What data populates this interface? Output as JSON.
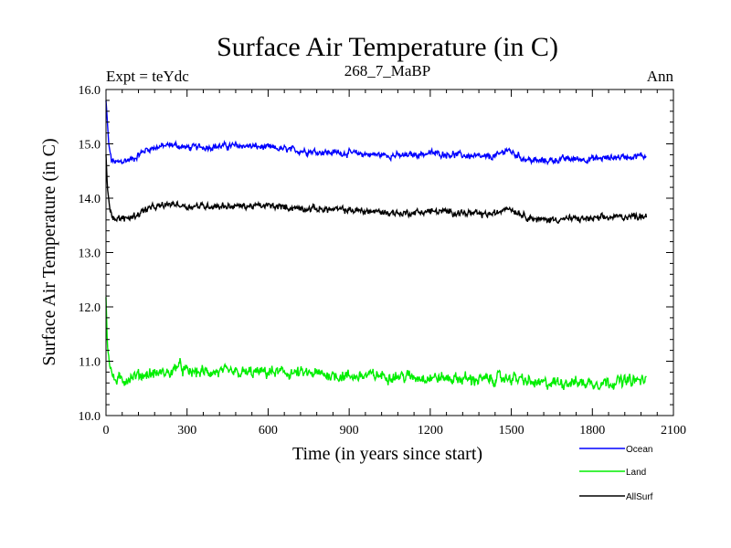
{
  "chart_data": {
    "type": "line",
    "title": "Surface Air Temperature (in C)",
    "subtitle": "268_7_MaBP",
    "experiment": "Expt = teYdc",
    "season": "Ann",
    "xlabel": "Time (in years since start)",
    "ylabel": "Surface Air Temperature (in C)",
    "xlim": [
      0,
      2100
    ],
    "ylim": [
      10.0,
      16.0
    ],
    "xticks": [
      0,
      300,
      600,
      900,
      1200,
      1500,
      1800,
      2100
    ],
    "xtick_labels": [
      "0",
      "300",
      "600",
      "900",
      "1200",
      "1500",
      "1800",
      "2100"
    ],
    "yticks": [
      10.0,
      11.0,
      12.0,
      13.0,
      14.0,
      15.0,
      16.0
    ],
    "ytick_labels": [
      "10.0",
      "11.0",
      "12.0",
      "13.0",
      "14.0",
      "15.0",
      "16.0"
    ],
    "legend_position": "bottom-right outside",
    "series": [
      {
        "name": "Ocean",
        "color": "#0000ff",
        "x": [
          0,
          10,
          20,
          40,
          60,
          100,
          150,
          200,
          250,
          300,
          400,
          500,
          600,
          700,
          800,
          900,
          1000,
          1100,
          1200,
          1300,
          1400,
          1450,
          1480,
          1500,
          1550,
          1600,
          1700,
          1800,
          1900,
          2000
        ],
        "values": [
          15.8,
          15.0,
          14.7,
          14.65,
          14.68,
          14.72,
          14.9,
          14.95,
          14.98,
          14.93,
          14.95,
          14.97,
          14.93,
          14.88,
          14.85,
          14.83,
          14.8,
          14.78,
          14.83,
          14.8,
          14.75,
          14.78,
          14.9,
          14.85,
          14.72,
          14.68,
          14.72,
          14.72,
          14.76,
          14.78
        ],
        "noise": 0.09
      },
      {
        "name": "Land",
        "color": "#00ee00",
        "x": [
          0,
          5,
          15,
          30,
          60,
          100,
          150,
          200,
          250,
          260,
          300,
          400,
          500,
          600,
          700,
          800,
          900,
          1000,
          1100,
          1200,
          1300,
          1400,
          1500,
          1600,
          1700,
          1800,
          1900,
          2000
        ],
        "values": [
          12.2,
          11.3,
          10.9,
          10.65,
          10.65,
          10.72,
          10.76,
          10.78,
          10.8,
          10.95,
          10.8,
          10.8,
          10.78,
          10.8,
          10.78,
          10.76,
          10.72,
          10.74,
          10.72,
          10.7,
          10.68,
          10.66,
          10.7,
          10.58,
          10.62,
          10.6,
          10.63,
          10.65
        ],
        "noise": 0.16
      },
      {
        "name": "AllSurf",
        "color": "#000000",
        "x": [
          0,
          5,
          15,
          30,
          60,
          100,
          150,
          200,
          250,
          300,
          400,
          500,
          600,
          700,
          800,
          900,
          1000,
          1100,
          1200,
          1300,
          1400,
          1450,
          1480,
          1500,
          1550,
          1600,
          1700,
          1800,
          1900,
          2000
        ],
        "values": [
          14.8,
          14.2,
          13.8,
          13.62,
          13.62,
          13.66,
          13.8,
          13.85,
          13.9,
          13.85,
          13.86,
          13.85,
          13.86,
          13.82,
          13.8,
          13.78,
          13.75,
          13.72,
          13.76,
          13.74,
          13.7,
          13.72,
          13.85,
          13.8,
          13.68,
          13.6,
          13.62,
          13.62,
          13.66,
          13.68
        ],
        "noise": 0.09
      }
    ]
  }
}
